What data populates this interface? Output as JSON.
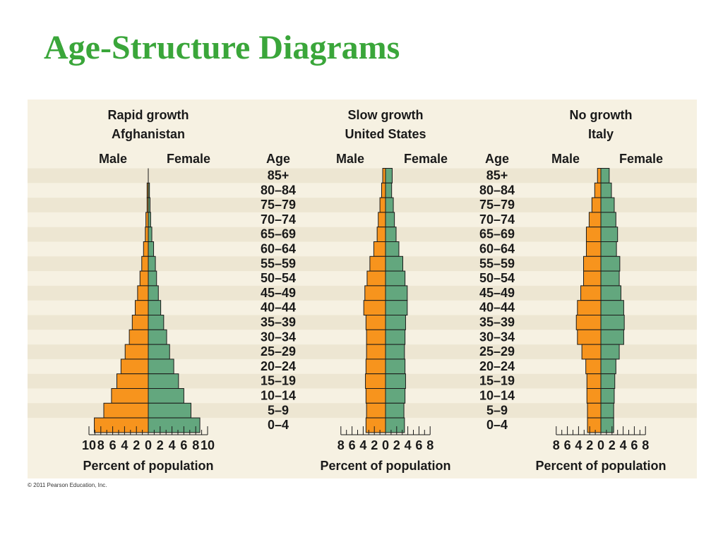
{
  "slide": {
    "title": "Age-Structure Diagrams",
    "copyright": "© 2011 Pearson Education, Inc."
  },
  "colors": {
    "title": "#3aa63a",
    "male": "#f7941d",
    "female": "#63a77e",
    "background": "#f6f1e2",
    "band": "#ede6d2"
  },
  "chart_data": [
    {
      "type": "bar",
      "orientation": "horizontal-population-pyramid",
      "title": "Rapid growth",
      "subtitle": "Afghanistan",
      "male_label": "Male",
      "female_label": "Female",
      "age_label": "Age",
      "xlabel": "Percent of population",
      "xlim": [
        -10,
        8
      ],
      "x_ticks": [
        -10,
        -8,
        -6,
        -4,
        -2,
        0,
        2,
        4,
        6,
        8,
        10
      ],
      "x_tick_labels": [
        "10",
        "8",
        "6",
        "4",
        "2",
        "0",
        "2",
        "4",
        "6",
        "8",
        "10"
      ],
      "grid": true,
      "categories": [
        "85+",
        "80–84",
        "75–79",
        "70–74",
        "65–69",
        "60–64",
        "55–59",
        "50–54",
        "45–49",
        "40–44",
        "35–39",
        "30–34",
        "25–29",
        "20–24",
        "15–19",
        "10–14",
        "5–9",
        "0–4"
      ],
      "series": [
        {
          "name": "Male",
          "values": [
            0.0,
            0.2,
            0.2,
            0.4,
            0.5,
            0.8,
            1.1,
            1.4,
            1.8,
            2.2,
            2.7,
            3.2,
            3.9,
            4.6,
            5.3,
            6.2,
            7.5,
            9.1
          ]
        },
        {
          "name": "Female",
          "values": [
            0.0,
            0.2,
            0.3,
            0.4,
            0.6,
            0.9,
            1.2,
            1.4,
            1.7,
            2.1,
            2.6,
            3.1,
            3.6,
            4.3,
            5.1,
            6.0,
            7.2,
            8.7
          ]
        }
      ]
    },
    {
      "type": "bar",
      "orientation": "horizontal-population-pyramid",
      "title": "Slow growth",
      "subtitle": "United States",
      "male_label": "Male",
      "female_label": "Female",
      "age_label": "Age",
      "xlabel": "Percent of population",
      "xlim": [
        -8,
        8
      ],
      "x_ticks": [
        -8,
        -6,
        -4,
        -2,
        0,
        2,
        4,
        6,
        8
      ],
      "x_tick_labels": [
        "8",
        "6",
        "4",
        "2",
        "0",
        "2",
        "4",
        "6",
        "8"
      ],
      "grid": true,
      "categories": [
        "85+",
        "80–84",
        "75–79",
        "70–74",
        "65–69",
        "60–64",
        "55–59",
        "50–54",
        "45–49",
        "40–44",
        "35–39",
        "30–34",
        "25–29",
        "20–24",
        "15–19",
        "10–14",
        "5–9",
        "0–4"
      ],
      "series": [
        {
          "name": "Male",
          "values": [
            0.5,
            0.7,
            1.0,
            1.3,
            1.5,
            2.1,
            2.8,
            3.3,
            3.7,
            3.9,
            3.5,
            3.4,
            3.4,
            3.5,
            3.6,
            3.5,
            3.4,
            3.5
          ]
        },
        {
          "name": "Female",
          "values": [
            1.2,
            1.1,
            1.4,
            1.6,
            1.9,
            2.4,
            3.1,
            3.5,
            3.9,
            3.9,
            3.6,
            3.5,
            3.4,
            3.5,
            3.6,
            3.5,
            3.3,
            3.4
          ]
        }
      ]
    },
    {
      "type": "bar",
      "orientation": "horizontal-population-pyramid",
      "title": "No growth",
      "subtitle": "Italy",
      "male_label": "Male",
      "female_label": "Female",
      "age_label": "Age",
      "xlabel": "Percent of population",
      "xlim": [
        -8,
        8
      ],
      "x_ticks": [
        -8,
        -6,
        -4,
        -2,
        0,
        2,
        4,
        6,
        8
      ],
      "x_tick_labels": [
        "8",
        "6",
        "4",
        "2",
        "0",
        "2",
        "4",
        "6",
        "8"
      ],
      "grid": true,
      "categories": [
        "85+",
        "80–84",
        "75–79",
        "70–74",
        "65–69",
        "60–64",
        "55–59",
        "50–54",
        "45–49",
        "40–44",
        "35–39",
        "30–34",
        "25–29",
        "20–24",
        "15–19",
        "10–14",
        "5–9",
        "0–4"
      ],
      "series": [
        {
          "name": "Male",
          "values": [
            0.6,
            1.1,
            1.6,
            2.1,
            2.6,
            2.6,
            3.1,
            3.1,
            3.6,
            4.2,
            4.4,
            4.2,
            3.4,
            2.7,
            2.5,
            2.5,
            2.4,
            2.4
          ]
        },
        {
          "name": "Female",
          "values": [
            1.5,
            1.9,
            2.4,
            2.7,
            3.0,
            2.8,
            3.4,
            3.3,
            3.6,
            4.1,
            4.2,
            4.1,
            3.3,
            2.7,
            2.5,
            2.4,
            2.3,
            2.3
          ]
        }
      ]
    }
  ]
}
